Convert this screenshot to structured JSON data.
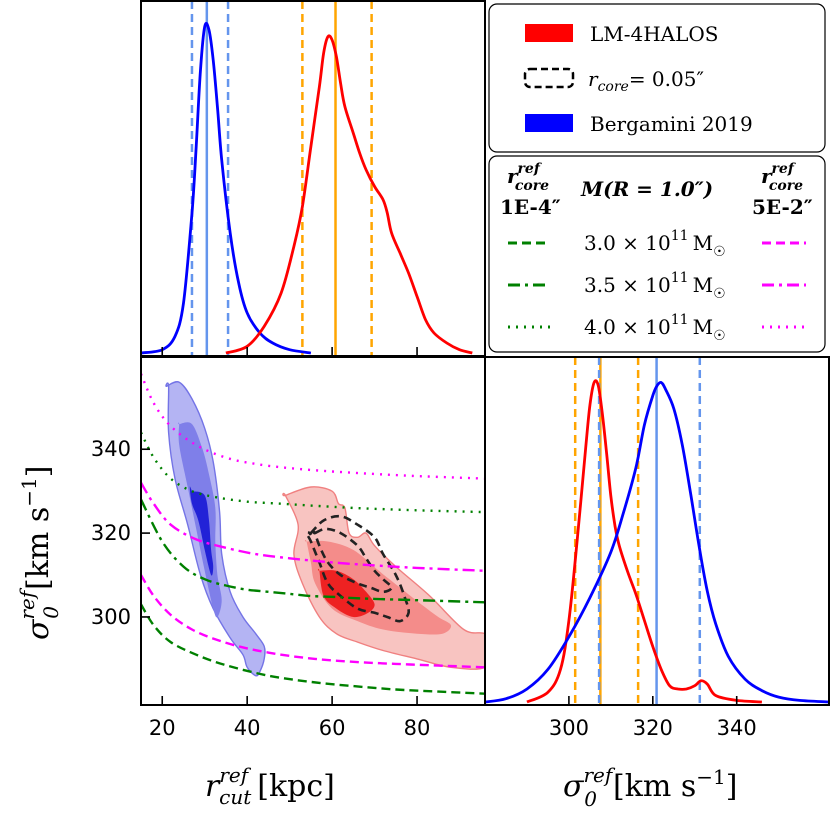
{
  "chart_data": [
    {
      "panel": "top-left",
      "type": "line",
      "xlim": [
        15,
        96
      ],
      "x_ticks": [
        20,
        40,
        60,
        80
      ],
      "y_ticks_shown": false,
      "series": [
        {
          "name": "Bergamini 2019",
          "color": "#0000ff",
          "x": [
            15,
            20,
            23,
            25,
            27,
            28,
            29,
            30,
            31,
            32,
            33,
            34,
            36,
            38,
            40,
            43,
            46,
            50,
            55
          ],
          "y": [
            0,
            0.01,
            0.05,
            0.15,
            0.42,
            0.62,
            0.85,
            0.98,
            0.97,
            0.88,
            0.74,
            0.58,
            0.36,
            0.21,
            0.12,
            0.06,
            0.03,
            0.01,
            0
          ]
        },
        {
          "name": "LM-4HALOS",
          "color": "#ff0000",
          "x": [
            35,
            40,
            44,
            48,
            51,
            53,
            55,
            57,
            58,
            59,
            60,
            61,
            62,
            63,
            65,
            66.5,
            68,
            70,
            72,
            73,
            74,
            76,
            78,
            80,
            82,
            84,
            87,
            90,
            93
          ],
          "y": [
            0,
            0.02,
            0.08,
            0.18,
            0.32,
            0.44,
            0.62,
            0.8,
            0.9,
            0.95,
            0.94,
            0.89,
            0.81,
            0.74,
            0.66,
            0.6,
            0.55,
            0.5,
            0.46,
            0.42,
            0.36,
            0.3,
            0.24,
            0.17,
            0.1,
            0.06,
            0.03,
            0.01,
            0
          ]
        }
      ],
      "vlines": [
        {
          "x": 27,
          "color": "#6495ed",
          "style": "dashed"
        },
        {
          "x": 30.5,
          "color": "#6495ed",
          "style": "solid"
        },
        {
          "x": 35.5,
          "color": "#6495ed",
          "style": "dashed"
        },
        {
          "x": 53,
          "color": "#ffa500",
          "style": "dashed"
        },
        {
          "x": 60.8,
          "color": "#ffa500",
          "style": "solid"
        },
        {
          "x": 69.3,
          "color": "#ffa500",
          "style": "dashed"
        }
      ]
    },
    {
      "panel": "bottom-left",
      "type": "contour",
      "xlim": [
        15,
        96
      ],
      "ylim": [
        279,
        362
      ],
      "x_ticks": [
        20,
        40,
        60,
        80
      ],
      "y_ticks": [
        300,
        320,
        340
      ],
      "xlabel": "r_cut^ref [kpc]",
      "ylabel": "σ_0^ref [km s^-1]",
      "blue_contours": [
        {
          "level": "outer",
          "x": [
            21,
            24,
            27,
            30,
            32,
            33.5,
            34,
            36,
            39,
            42,
            44,
            44,
            43,
            42,
            40,
            39,
            36,
            32,
            29,
            26,
            23,
            21.5,
            21.5
          ],
          "y": [
            355,
            356,
            352,
            345,
            337,
            325,
            315,
            306,
            300,
            296,
            293,
            290,
            287,
            286,
            288,
            291,
            295,
            302,
            310,
            322,
            333,
            344,
            355
          ]
        },
        {
          "level": "middle",
          "x": [
            24,
            27,
            29.5,
            31,
            32.5,
            32.5,
            33,
            34,
            33,
            32,
            30,
            28,
            26,
            24,
            24
          ],
          "y": [
            346,
            346,
            340,
            334,
            326,
            318,
            310,
            304,
            300,
            302,
            311,
            321,
            331,
            341,
            346
          ]
        },
        {
          "level": "inner",
          "x": [
            27,
            30,
            31,
            31.5,
            32,
            31.5,
            30,
            28.5,
            27,
            26.5,
            27
          ],
          "y": [
            330,
            329,
            323,
            316,
            312,
            310,
            316,
            323,
            327,
            331,
            330
          ]
        }
      ],
      "red_contours": [
        {
          "level": "outer",
          "x": [
            49,
            55,
            60,
            61.5,
            63,
            64,
            66,
            68,
            70,
            75,
            83,
            91,
            96,
            98,
            96,
            88,
            80,
            72,
            66,
            61,
            57,
            53,
            51,
            52,
            49
          ],
          "y": [
            329,
            331,
            330,
            327,
            326,
            320,
            319,
            320,
            317,
            312,
            305,
            297,
            296,
            293,
            288,
            288,
            290,
            292,
            294,
            296,
            300,
            308,
            315,
            322,
            329
          ]
        },
        {
          "level": "middle",
          "x": [
            54,
            59,
            65,
            71,
            76,
            81,
            85,
            88,
            86,
            80,
            72,
            66,
            60,
            56,
            55,
            54
          ],
          "y": [
            318,
            318,
            316,
            311,
            307,
            303,
            300,
            298,
            296,
            296,
            297,
            299,
            302,
            308,
            313,
            318
          ]
        },
        {
          "level": "inner",
          "x": [
            57,
            61,
            65,
            68,
            70,
            68.5,
            65,
            61,
            58,
            57
          ],
          "y": [
            311,
            311,
            309,
            306,
            303,
            301,
            300,
            302,
            305,
            311
          ]
        }
      ],
      "dashed_contours": [
        {
          "level": "outer",
          "x": [
            55,
            58,
            62,
            66,
            70,
            72,
            75,
            77,
            78,
            76,
            73,
            70,
            66,
            62,
            59,
            57,
            55,
            54,
            55
          ],
          "y": [
            320,
            323,
            324,
            322,
            319,
            315,
            310,
            305,
            301,
            299,
            300,
            301,
            302,
            305,
            308,
            313,
            318,
            320,
            320
          ]
        },
        {
          "level": "inner",
          "x": [
            56,
            58.5,
            62,
            66,
            68,
            70,
            72,
            74,
            72,
            69,
            66,
            62,
            59,
            57,
            56
          ],
          "y": [
            320,
            321,
            320,
            317,
            314,
            311,
            309,
            307,
            306,
            307,
            308,
            310,
            313,
            317,
            320
          ]
        }
      ],
      "curves": [
        {
          "name": "3.0 × 10^11 M☉",
          "family": "green",
          "r_core": "1E-4″",
          "style": "dashed",
          "color": "#008000",
          "x": [
            15,
            18,
            22,
            28,
            35,
            45,
            55,
            65,
            75,
            85,
            96
          ],
          "y": [
            303,
            298,
            294,
            291,
            288.5,
            286,
            284.5,
            283.5,
            282.7,
            282.2,
            281.7
          ]
        },
        {
          "name": "3.5 × 10^11 M☉",
          "family": "green",
          "r_core": "1E-4″",
          "style": "dashdot",
          "color": "#008000",
          "x": [
            15,
            20,
            25,
            30,
            35,
            40,
            45,
            50,
            55,
            60,
            65,
            70,
            80,
            96
          ],
          "y": [
            328,
            318,
            312,
            309,
            307.5,
            306.5,
            306,
            305.5,
            305,
            304.8,
            304.5,
            304.3,
            304,
            303.5
          ]
        },
        {
          "name": "4.0 × 10^11 M☉",
          "family": "green",
          "r_core": "1E-4″",
          "style": "dotted",
          "color": "#008000",
          "x": [
            15,
            18,
            22,
            27,
            33,
            40,
            48,
            56,
            65,
            75,
            85,
            96
          ],
          "y": [
            344,
            338,
            333,
            330,
            328.5,
            327.5,
            327,
            326.5,
            326,
            325.6,
            325.3,
            325
          ]
        },
        {
          "name": "3.0 × 10^11 M☉",
          "family": "magenta",
          "r_core": "5E-2″",
          "style": "dashed",
          "color": "#ff00ff",
          "x": [
            15,
            18,
            22,
            27,
            33,
            40,
            48,
            56,
            65,
            75,
            85,
            96
          ],
          "y": [
            310,
            305,
            300.5,
            297,
            294.5,
            292.5,
            291,
            290,
            289.3,
            288.8,
            288.4,
            288
          ]
        },
        {
          "name": "3.5 × 10^11 M☉",
          "family": "magenta",
          "r_core": "5E-2″",
          "style": "dashdot",
          "color": "#ff00ff",
          "x": [
            15,
            18,
            22,
            28,
            35,
            42,
            50,
            60,
            70,
            80,
            96
          ],
          "y": [
            332,
            327,
            322,
            318.5,
            316.5,
            315,
            314,
            313,
            312.3,
            311.7,
            311
          ]
        },
        {
          "name": "4.0 × 10^11 M☉",
          "family": "magenta",
          "r_core": "5E-2″",
          "style": "dotted",
          "color": "#ff00ff",
          "x": [
            15,
            18,
            22,
            28,
            35,
            42,
            50,
            60,
            70,
            80,
            96
          ],
          "y": [
            358,
            351,
            345.5,
            341,
            338,
            336.5,
            335.5,
            334.7,
            334.1,
            333.6,
            333
          ]
        }
      ]
    },
    {
      "panel": "bottom-right",
      "type": "line",
      "xlim": [
        280,
        362
      ],
      "x_ticks": [
        300,
        320,
        340
      ],
      "y_ticks_shown": false,
      "xlabel": "σ_0^ref [km s^-1]",
      "series": [
        {
          "name": "LM-4HALOS",
          "color": "#ff0000",
          "x": [
            290,
            295,
            298,
            300,
            302,
            304,
            305,
            306,
            307,
            308,
            309,
            310,
            311,
            312,
            314,
            316,
            318,
            320,
            322,
            324,
            326,
            328,
            330,
            331.5,
            333,
            335,
            340,
            346
          ],
          "y": [
            0,
            0.03,
            0.1,
            0.25,
            0.5,
            0.78,
            0.91,
            0.98,
            0.97,
            0.88,
            0.76,
            0.63,
            0.54,
            0.48,
            0.4,
            0.33,
            0.25,
            0.17,
            0.1,
            0.05,
            0.04,
            0.04,
            0.05,
            0.065,
            0.055,
            0.02,
            0.005,
            0
          ]
        },
        {
          "name": "Bergamini 2019",
          "color": "#0000ff",
          "x": [
            280,
            285,
            290,
            295,
            300,
            305,
            310,
            313,
            316,
            318,
            320,
            321,
            322,
            323,
            325,
            327,
            329,
            331,
            333,
            335,
            338,
            342,
            346,
            350,
            355,
            362
          ],
          "y": [
            0,
            0.01,
            0.04,
            0.1,
            0.2,
            0.32,
            0.46,
            0.58,
            0.72,
            0.85,
            0.94,
            0.97,
            0.98,
            0.96,
            0.9,
            0.79,
            0.64,
            0.48,
            0.34,
            0.24,
            0.14,
            0.07,
            0.035,
            0.015,
            0.005,
            0
          ]
        }
      ],
      "vlines": [
        {
          "x": 301.5,
          "color": "#ffa500",
          "style": "dashed"
        },
        {
          "x": 307.5,
          "color": "#ffa500",
          "style": "solid"
        },
        {
          "x": 316.5,
          "color": "#ffa500",
          "style": "dashed"
        },
        {
          "x": 307.2,
          "color": "#6495ed",
          "style": "dashed"
        },
        {
          "x": 320.9,
          "color": "#6495ed",
          "style": "solid"
        },
        {
          "x": 331.2,
          "color": "#6495ed",
          "style": "dashed"
        }
      ]
    }
  ],
  "legend_top": {
    "items": [
      {
        "label": "LM-4HALOS",
        "kind": "patch",
        "color": "#ff0000"
      },
      {
        "label": "r_core = 0.05″",
        "kind": "dashed-box",
        "color": "#000000"
      },
      {
        "label": "Bergamini 2019",
        "kind": "patch",
        "color": "#0000ff"
      }
    ]
  },
  "legend_bottom": {
    "left_header": {
      "main": "r",
      "sup": "ref",
      "sub": "core",
      "value": "1E-4″"
    },
    "center_header": "M(R = 1.0″)",
    "right_header": {
      "main": "r",
      "sup": "ref",
      "sub": "core",
      "value": "5E-2″"
    },
    "rows": [
      {
        "mass_coef": "3.0",
        "mass_exp": "11",
        "unit": "M",
        "sun": "☉",
        "style": "dashed"
      },
      {
        "mass_coef": "3.5",
        "mass_exp": "11",
        "unit": "M",
        "sun": "☉",
        "style": "dashdot"
      },
      {
        "mass_coef": "4.0",
        "mass_exp": "11",
        "unit": "M",
        "sun": "☉",
        "style": "dotted"
      }
    ],
    "left_color": "#008000",
    "right_color": "#ff00ff"
  },
  "labels": {
    "xlabel_left": {
      "main": "r",
      "sup": "ref",
      "sub": "cut",
      "unit": "[kpc]"
    },
    "xlabel_right": {
      "main": "σ",
      "sup": "ref",
      "sub": "0",
      "unit": "[km s",
      "unit_exp": "−1",
      "unit_end": "]"
    },
    "ylabel": {
      "main": "σ",
      "sup": "ref",
      "sub": "0",
      "unit": "[km s",
      "unit_exp": "−1",
      "unit_end": "]"
    },
    "times": "×",
    "times_ten": "10",
    "eq": "= 0.05″"
  },
  "colors": {
    "blue_fill": [
      "#b4b4f3",
      "#7f7fe9",
      "#2222d7"
    ],
    "red_fill": [
      "#f8c4c1",
      "#f48c8a",
      "#ee2222"
    ],
    "blue_edge": "#7474e6",
    "red_edge": "#f08080"
  }
}
